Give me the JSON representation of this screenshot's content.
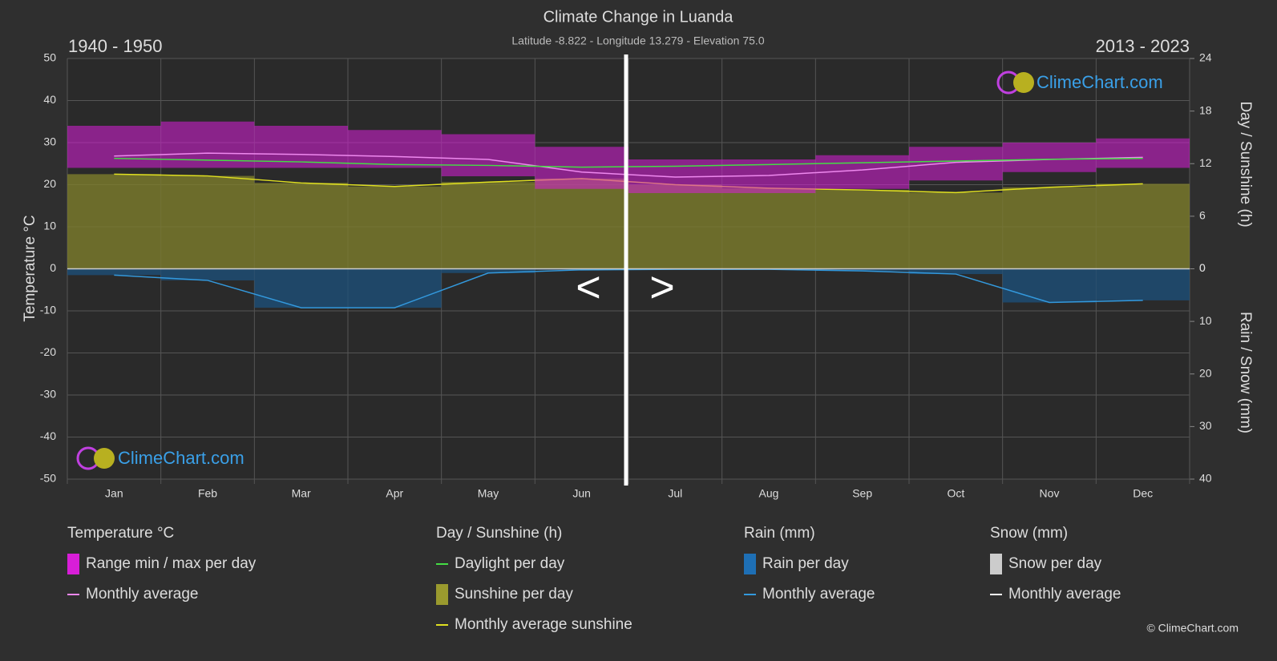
{
  "chart_data": {
    "type": "climate",
    "title": "Climate Change in Luanda",
    "subtitle": "Latitude -8.822 - Longitude 13.279 - Elevation 75.0",
    "period_left": "1940 - 1950",
    "period_right": "2013 - 2023",
    "nav_prev": "<",
    "nav_next": ">",
    "watermark": "ClimeChart.com",
    "copyright": "© ClimeChart.com",
    "categories": [
      "Jan",
      "Feb",
      "Mar",
      "Apr",
      "May",
      "Jun",
      "Jul",
      "Aug",
      "Sep",
      "Oct",
      "Nov",
      "Dec"
    ],
    "ylabel": "Temperature °C",
    "ylim": [
      -50,
      50
    ],
    "yticks": [
      -50,
      -40,
      -30,
      -20,
      -10,
      0,
      10,
      20,
      30,
      40,
      50
    ],
    "y2label": "Day / Sunshine (h)",
    "y2lim": [
      0,
      24
    ],
    "y2ticks": [
      0,
      6,
      12,
      18,
      24
    ],
    "y3label": "Rain / Snow (mm)",
    "y3lim": [
      0,
      40
    ],
    "y3ticks": [
      0,
      10,
      20,
      30,
      40
    ],
    "grid": true,
    "legend_groups": [
      "Temperature °C",
      "Day / Sunshine (h)",
      "Rain (mm)",
      "Snow (mm)"
    ],
    "series": [
      {
        "name": "Range min / max per day",
        "group": 0,
        "kind": "range",
        "color": "#d81ed8",
        "min": [
          24,
          24,
          24,
          24,
          22,
          19,
          18,
          18,
          19,
          21,
          23,
          24
        ],
        "max": [
          34,
          35,
          34,
          33,
          32,
          29,
          26,
          26,
          27,
          29,
          30,
          31
        ]
      },
      {
        "name": "Monthly average",
        "group": 0,
        "kind": "line",
        "color": "#ee88ee",
        "values": [
          26.8,
          27.5,
          27.2,
          26.7,
          26.0,
          23.0,
          21.8,
          22.2,
          23.5,
          25.3,
          26.0,
          26.5
        ]
      },
      {
        "name": "Daylight per day",
        "group": 1,
        "kind": "line",
        "axis": "y2",
        "color": "#44dd44",
        "values": [
          12.6,
          12.4,
          12.2,
          11.9,
          11.8,
          11.6,
          11.7,
          11.9,
          12.1,
          12.3,
          12.5,
          12.6
        ]
      },
      {
        "name": "Sunshine per day",
        "group": 1,
        "kind": "swatch",
        "color": "#9a9a2e"
      },
      {
        "name": "Monthly average sunshine",
        "group": 1,
        "kind": "barline",
        "axis": "y2",
        "color": "#e0e020",
        "values": [
          10.8,
          10.6,
          9.8,
          9.4,
          9.9,
          10.3,
          9.6,
          9.2,
          9.0,
          8.7,
          9.3,
          9.7
        ]
      },
      {
        "name": "Rain per day",
        "group": 2,
        "kind": "swatch",
        "color": "#1e6fb5"
      },
      {
        "name": "Monthly average",
        "group": 2,
        "kind": "barline",
        "axis": "y3",
        "color": "#3399dd",
        "values": [
          1.2,
          2.2,
          7.4,
          7.4,
          0.8,
          0.2,
          0.1,
          0.1,
          0.4,
          1.0,
          6.4,
          6.0
        ]
      },
      {
        "name": "Snow per day",
        "group": 3,
        "kind": "swatch",
        "color": "#cccccc"
      },
      {
        "name": "Monthly average",
        "group": 3,
        "kind": "legend-line",
        "color": "#ffffff"
      }
    ]
  }
}
